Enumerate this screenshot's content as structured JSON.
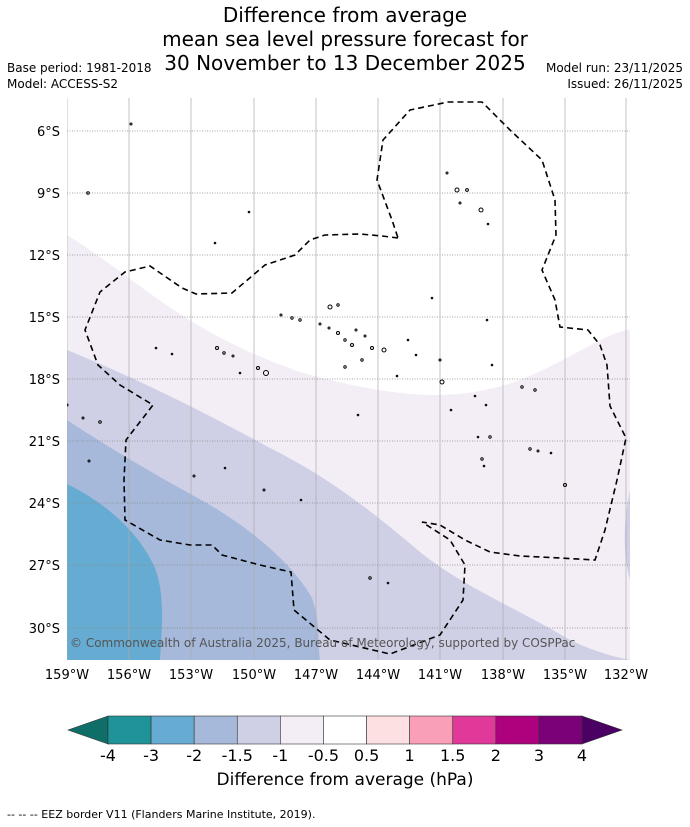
{
  "title_lines": [
    "Difference from average",
    "mean sea level pressure forecast for",
    "30 November to 13 December 2025"
  ],
  "meta": {
    "base_period": "Base period: 1981-2018",
    "model": "Model: ACCESS-S2",
    "model_run": "Model run: 23/11/2025",
    "issued": "Issued: 26/11/2025"
  },
  "axes": {
    "lat_labels": [
      "6°S",
      "9°S",
      "12°S",
      "15°S",
      "18°S",
      "21°S",
      "24°S",
      "27°S",
      "30°S"
    ],
    "lon_labels": [
      "159°W",
      "156°W",
      "153°W",
      "150°W",
      "147°W",
      "144°W",
      "141°W",
      "138°W",
      "135°W",
      "132°W"
    ]
  },
  "credit": "© Commonwealth of Australia 2025, Bureau of Meteorology, supported by COSPPac",
  "colorbar": {
    "ticks": [
      "-4",
      "-3",
      "-2",
      "-1.5",
      "-1",
      "-0.5",
      "0.5",
      "1",
      "1.5",
      "2",
      "3",
      "4"
    ],
    "colors": [
      "#1e9499",
      "#66abd1",
      "#a6b9db",
      "#cfd0e5",
      "#f3edf6",
      "#ffffff",
      "#fde0e1",
      "#f9a0b8",
      "#e0399a",
      "#ae017e",
      "#7a0177"
    ],
    "under_color": "#0f6e68",
    "over_color": "#4b0064",
    "label": "Difference from average (hPa)"
  },
  "fill_colors": {
    "c_m05": "#f3edf6",
    "c_m1": "#cfd0e5",
    "c_m15": "#a6b9db",
    "c_m2": "#66abd1"
  },
  "footer": "--  --  -- EEZ border V11 (Flanders Marine Institute, 2019)."
}
